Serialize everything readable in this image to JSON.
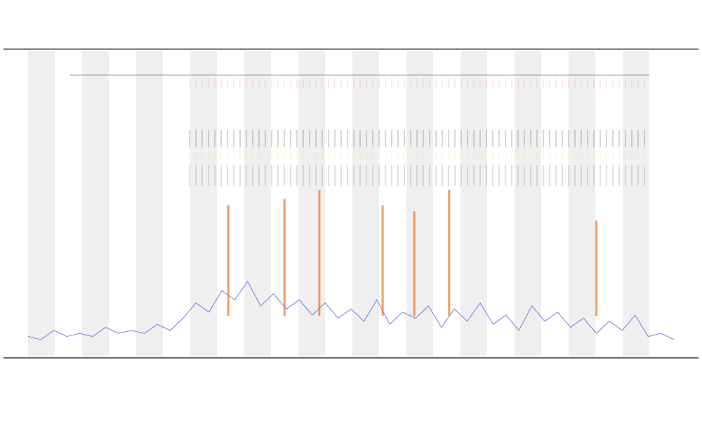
{
  "chart_data": {
    "type": "line",
    "xlim": [
      0,
      100
    ],
    "ylim": [
      0,
      100
    ],
    "series": [
      {
        "color": "#6f73e6",
        "x": [
          0,
          2,
          4,
          6,
          8,
          10,
          12,
          14,
          16,
          18,
          20,
          22,
          24,
          26,
          28,
          30,
          32,
          34,
          36,
          38,
          40,
          42,
          44,
          46,
          48,
          50,
          52,
          54,
          56,
          58,
          60,
          62,
          64,
          66,
          68,
          70,
          72,
          74,
          76,
          78,
          80,
          82,
          84,
          86,
          88,
          90,
          92,
          94,
          96,
          98,
          100
        ],
        "values": [
          7,
          6,
          9,
          7,
          8,
          7,
          10,
          8,
          9,
          8,
          11,
          9,
          13,
          18,
          15,
          22,
          19,
          25,
          17,
          21,
          16,
          19,
          14,
          18,
          13,
          16,
          12,
          19,
          11,
          15,
          13,
          17,
          10,
          16,
          12,
          18,
          11,
          14,
          9,
          17,
          12,
          15,
          10,
          13,
          8,
          12,
          9,
          14,
          7,
          8,
          6
        ]
      },
      {
        "color": "#f07a2a",
        "x": [
          31,
          39.7,
          45.1,
          54.9,
          59.8,
          65.2,
          88
        ],
        "values": [
          50,
          52,
          55,
          50,
          48,
          55,
          45
        ]
      }
    ]
  }
}
